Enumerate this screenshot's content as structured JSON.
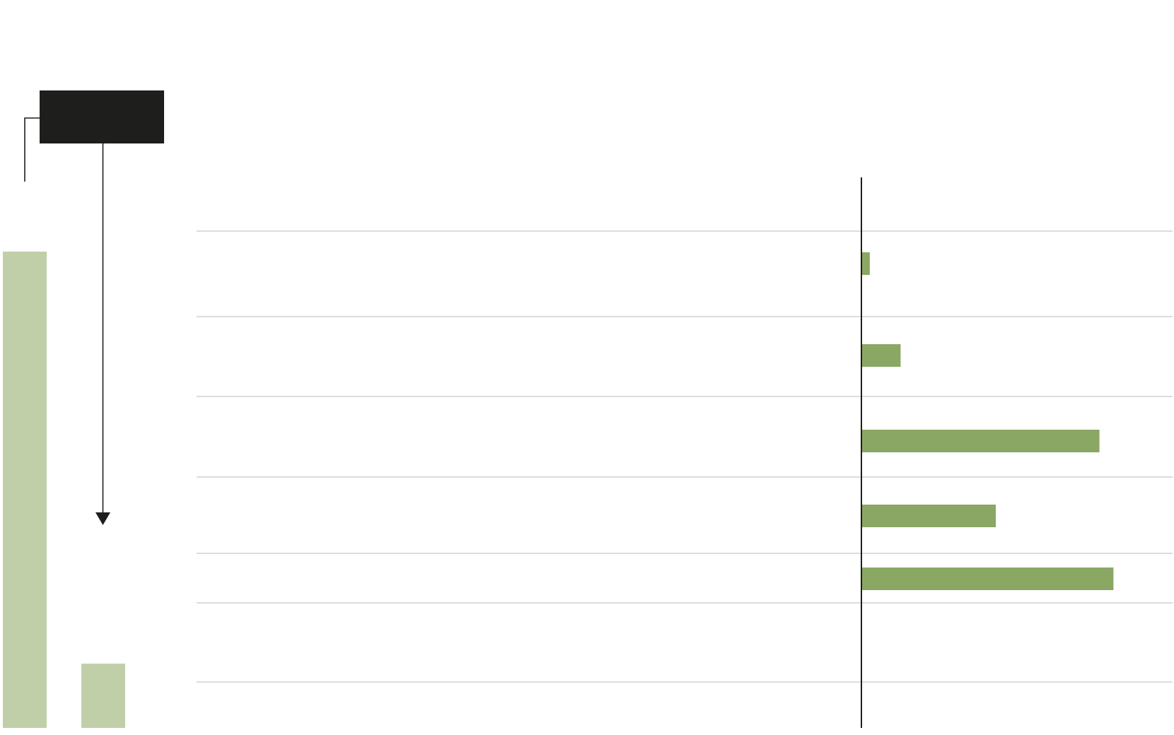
{
  "colors": {
    "bar": "#8aa764",
    "bar_light": "#c1cfa9",
    "axis": "#1e1e1c",
    "divider": "#c8c8c8",
    "label_box": "#1e1e1c",
    "background": "#ffffff"
  },
  "chart_data": [
    {
      "type": "bar",
      "orientation": "vertical",
      "categories": [
        "",
        ""
      ],
      "values": [
        100,
        13.5
      ],
      "ylim": [
        0,
        100
      ],
      "annotation": "arrow-down-from-label-box",
      "title": "",
      "xlabel": "",
      "ylabel": ""
    },
    {
      "type": "bar",
      "orientation": "horizontal",
      "categories": [
        "",
        "",
        "",
        "",
        "",
        ""
      ],
      "values": [
        0.3,
        1.4,
        8.5,
        4.8,
        9.0,
        0
      ],
      "xlim": [
        0,
        10
      ],
      "grid": false,
      "title": "",
      "xlabel": "",
      "ylabel": ""
    }
  ]
}
